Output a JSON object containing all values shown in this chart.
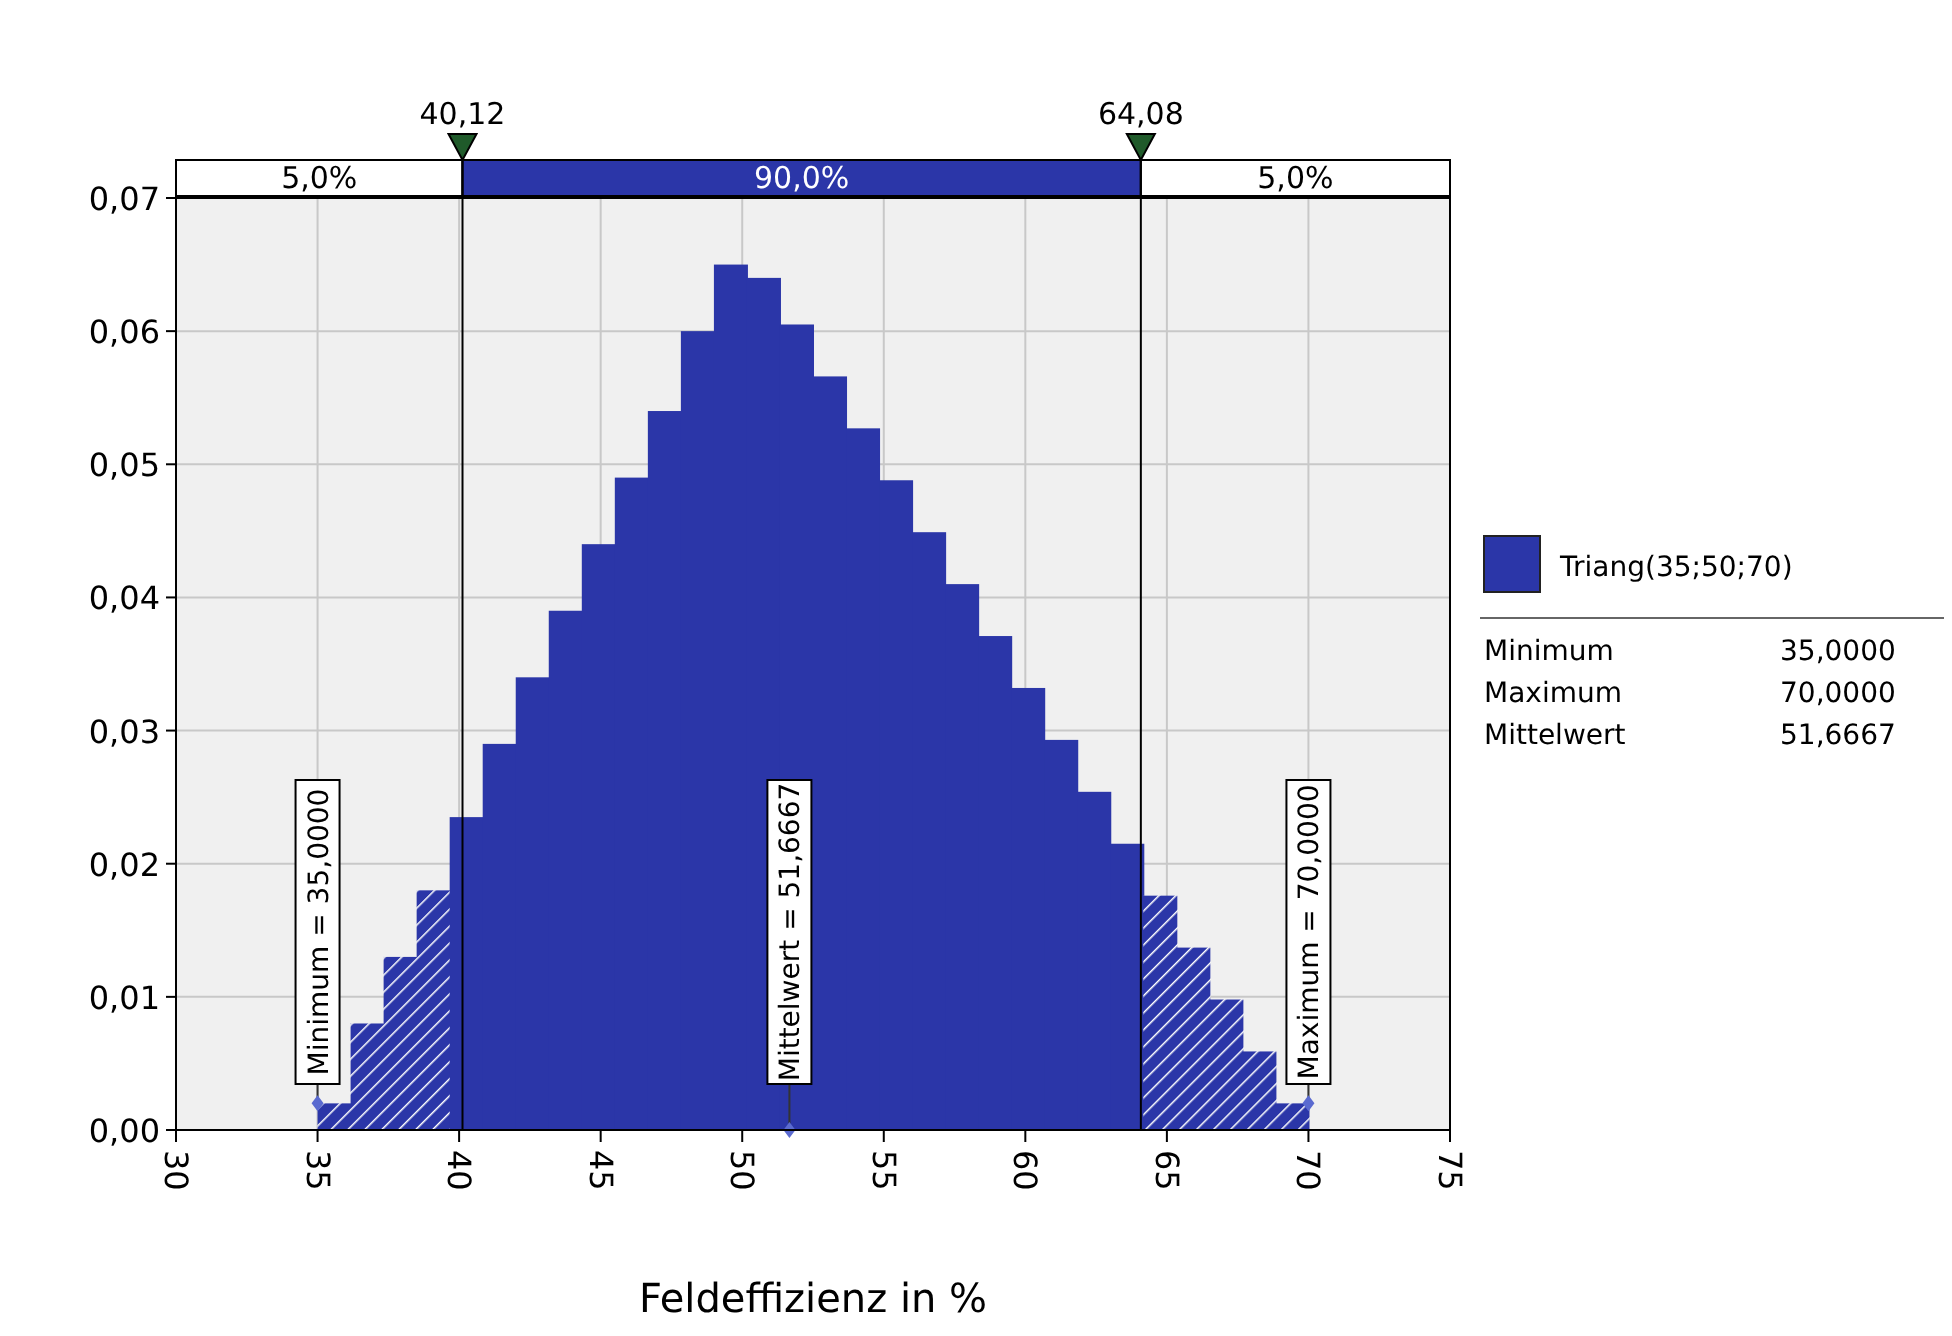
{
  "chart_data": {
    "type": "histogram",
    "xlabel": "Feldeffizienz in %",
    "bins": [
      35,
      36.1667,
      37.3333,
      38.5,
      39.6667,
      40.8333,
      42,
      43.1667,
      44.3333,
      45.5,
      46.6667,
      47.8333,
      49,
      50.1667,
      51.3333,
      52.5,
      53.6667,
      54.8333,
      56,
      57.1667,
      58.3333,
      59.5,
      60.6667,
      61.8333,
      63,
      64.1667,
      65.3333,
      66.5,
      67.6667,
      68.8333,
      70
    ],
    "series": [
      {
        "name": "Triang(35;50;70)",
        "color": "#2b36a8",
        "values": [
          0.002,
          0.008,
          0.013,
          0.018,
          0.0235,
          0.029,
          0.034,
          0.039,
          0.044,
          0.049,
          0.054,
          0.06,
          0.065,
          0.064,
          0.0605,
          0.0566,
          0.0527,
          0.0488,
          0.0449,
          0.041,
          0.0371,
          0.0332,
          0.0293,
          0.0254,
          0.0215,
          0.0176,
          0.0137,
          0.0098,
          0.0059,
          0.002
        ]
      }
    ],
    "xlim": [
      30,
      75
    ],
    "xticks": [
      30,
      35,
      40,
      45,
      50,
      55,
      60,
      65,
      70,
      75
    ],
    "ylim": [
      0,
      0.07
    ],
    "yticks": [
      {
        "value": 0,
        "label": "0,00"
      },
      {
        "value": 0.01,
        "label": "0,01"
      },
      {
        "value": 0.02,
        "label": "0,02"
      },
      {
        "value": 0.03,
        "label": "0,03"
      },
      {
        "value": 0.04,
        "label": "0,04"
      },
      {
        "value": 0.05,
        "label": "0,05"
      },
      {
        "value": 0.06,
        "label": "0,06"
      },
      {
        "value": 0.07,
        "label": "0,07"
      }
    ],
    "ref_lines": [
      {
        "axis": "x",
        "value": 40.12,
        "label": "40,12",
        "color": "#000000"
      },
      {
        "axis": "x",
        "value": 64.08,
        "label": "64,08",
        "color": "#000000"
      }
    ],
    "annotations": [
      {
        "text": "Minimum = 35,0000",
        "x": 35,
        "y": 0.002
      },
      {
        "text": "Mittelwert = 51,6667",
        "x": 51.6667,
        "y": 0
      },
      {
        "text": "Maximum = 70,0000",
        "x": 70,
        "y": 0.002
      },
      "5,0%",
      "90,0%",
      "5,0%",
      "Minimum",
      "35,0000",
      "Maximum",
      "70,0000",
      "Mittelwert",
      "51,6667"
    ],
    "grid": true,
    "legend": "right"
  }
}
